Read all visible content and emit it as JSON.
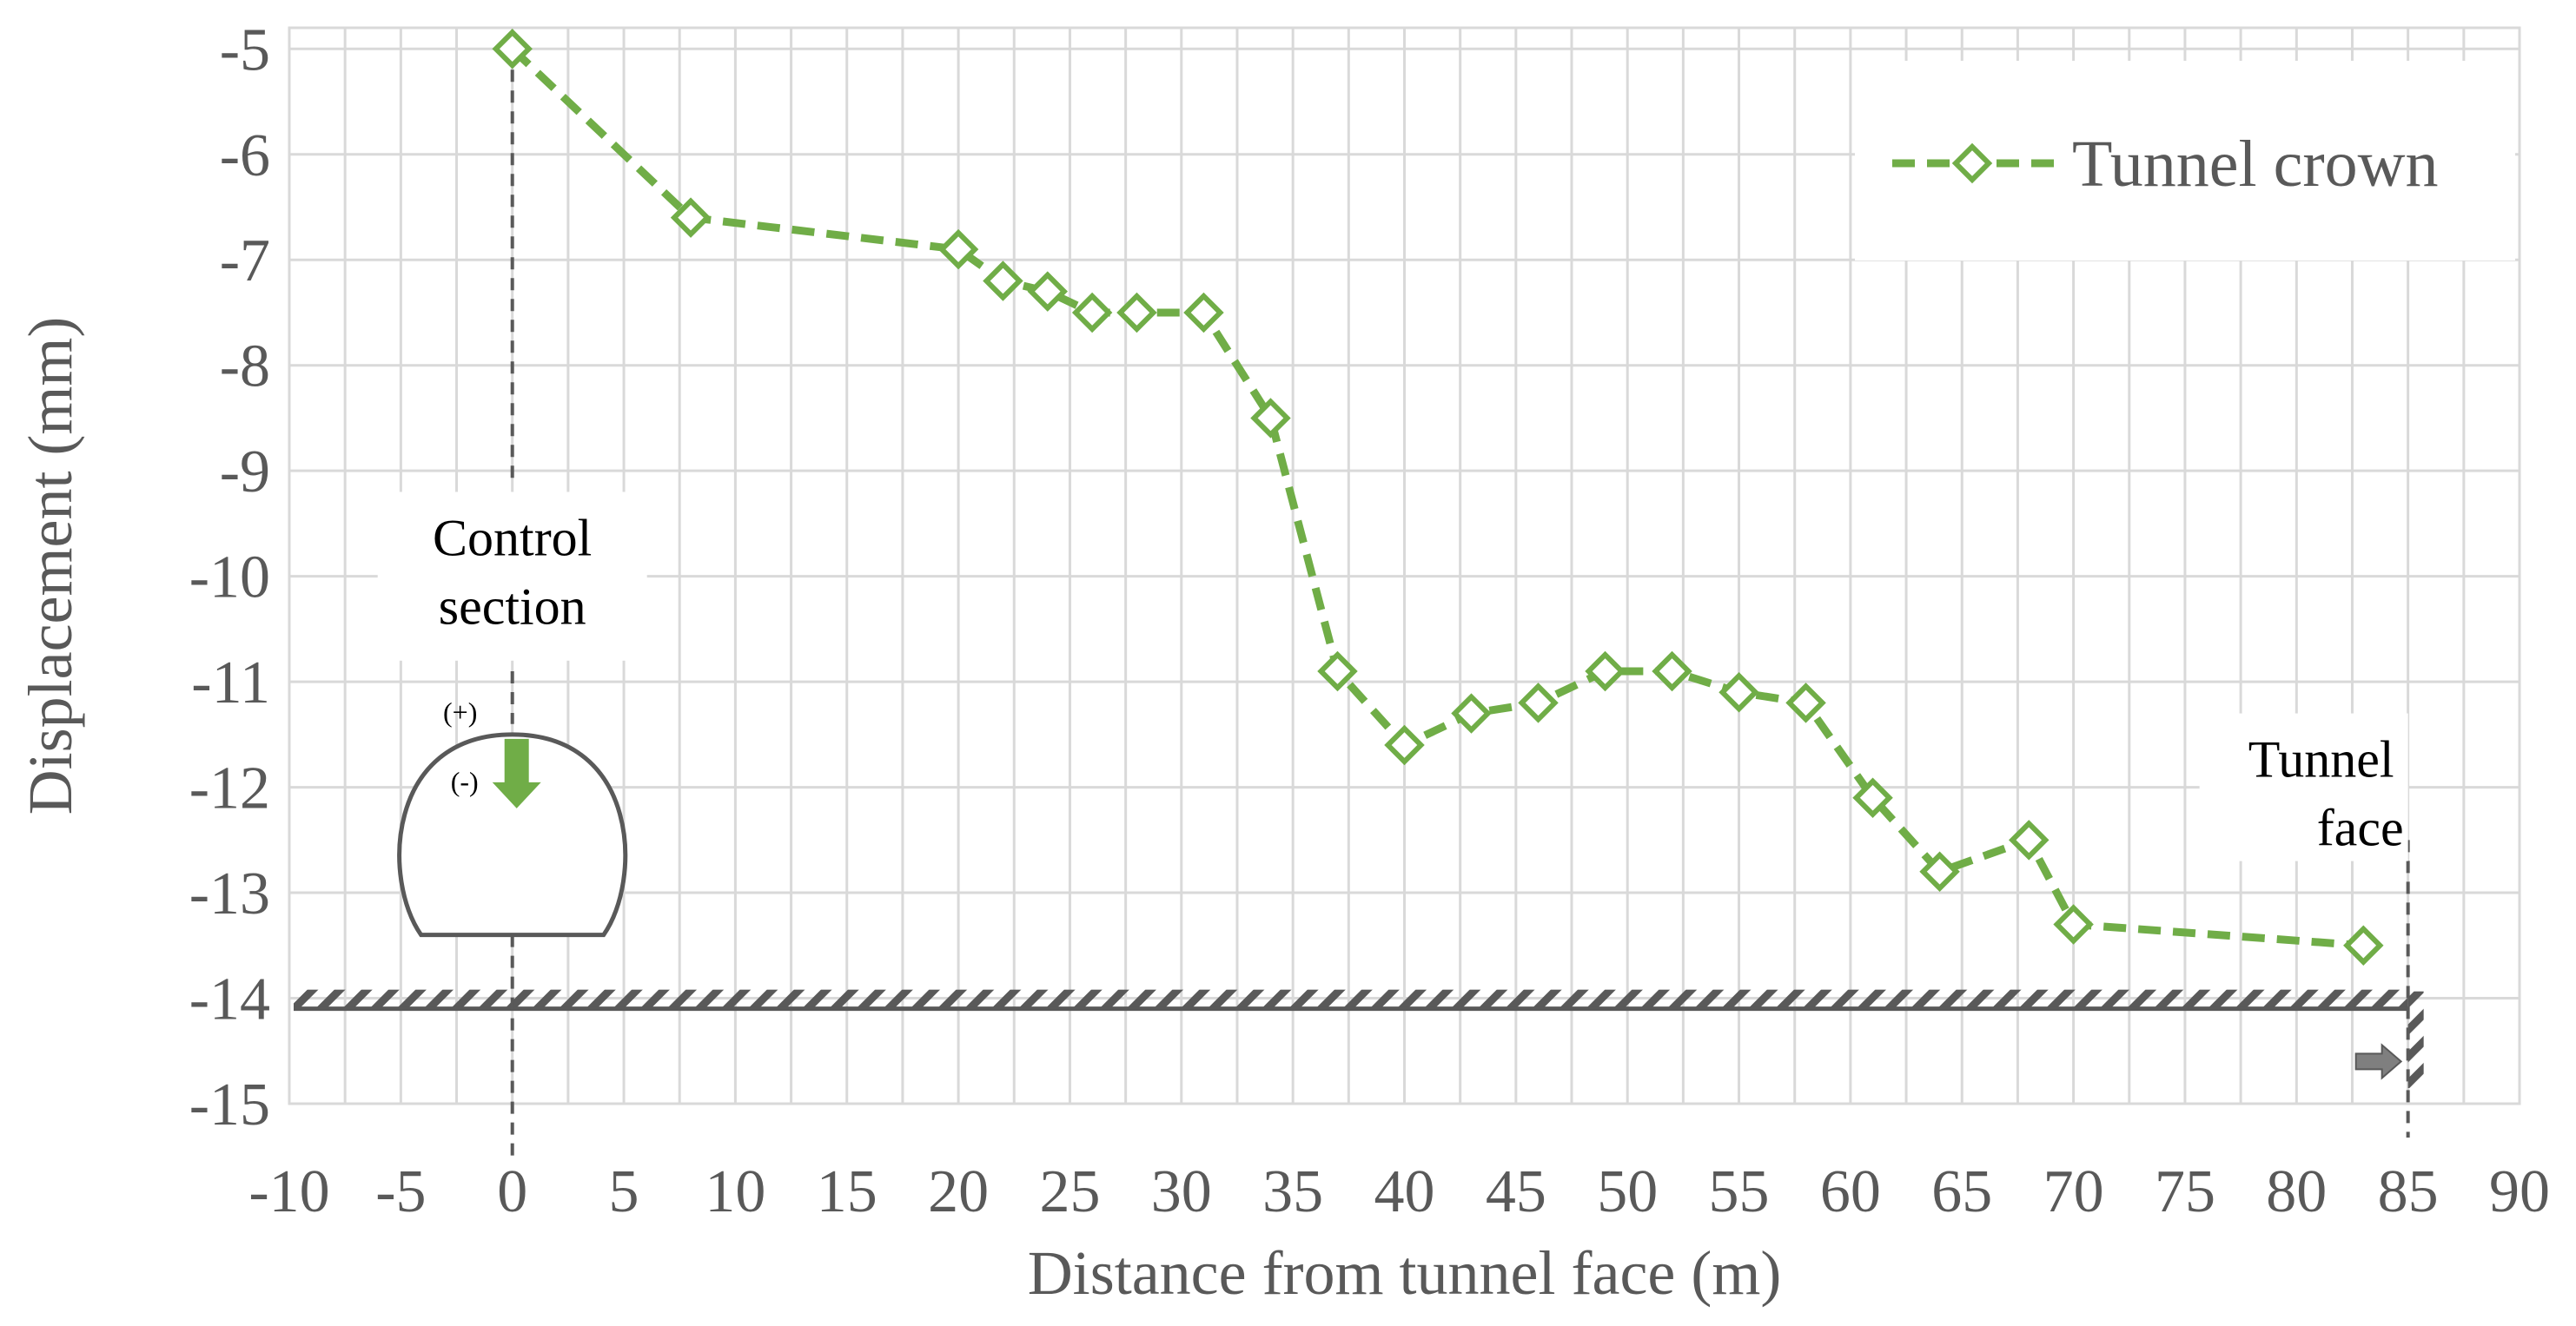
{
  "colors": {
    "series": "#70ad47",
    "grid": "#d9d9d9",
    "text": "#595959",
    "annotation": "#595959",
    "background": "#ffffff"
  },
  "chart_data": {
    "type": "line",
    "xlabel": "Distance from tunnel face (m)",
    "ylabel": "Displacement (mm)",
    "xlim": [
      -10,
      90
    ],
    "ylim": [
      -15,
      -4.8
    ],
    "x_ticks": [
      -10,
      -5,
      0,
      5,
      10,
      15,
      20,
      25,
      30,
      35,
      40,
      45,
      50,
      55,
      60,
      65,
      70,
      75,
      80,
      85,
      90
    ],
    "y_ticks": [
      -5,
      -6,
      -7,
      -8,
      -9,
      -10,
      -11,
      -12,
      -13,
      -14,
      -15
    ],
    "grid": true,
    "legend_position": "top-right",
    "series": [
      {
        "name": "Tunnel crown",
        "marker": "diamond-open",
        "line_style": "dashed",
        "x": [
          0,
          8,
          20,
          22,
          24,
          26,
          28,
          31,
          34,
          37,
          40,
          43,
          46,
          49,
          52,
          55,
          58,
          61,
          64,
          68,
          70,
          83
        ],
        "y": [
          -5,
          -6.6,
          -6.9,
          -7.2,
          -7.3,
          -7.5,
          -7.5,
          -7.5,
          -8.5,
          -10.9,
          -11.6,
          -11.3,
          -11.2,
          -10.9,
          -10.9,
          -11.1,
          -11.2,
          -12.1,
          -12.8,
          -12.5,
          -13.3,
          -13.5
        ]
      }
    ],
    "annotations": {
      "control_section": {
        "line1": "Control",
        "line2": "section",
        "x": 0
      },
      "tunnel_face": {
        "line1": "Tunnel",
        "line2": "face",
        "x": 85
      },
      "ground_level_y": -14.1,
      "sign_positive": "(+)",
      "sign_negative": "(-)"
    }
  }
}
